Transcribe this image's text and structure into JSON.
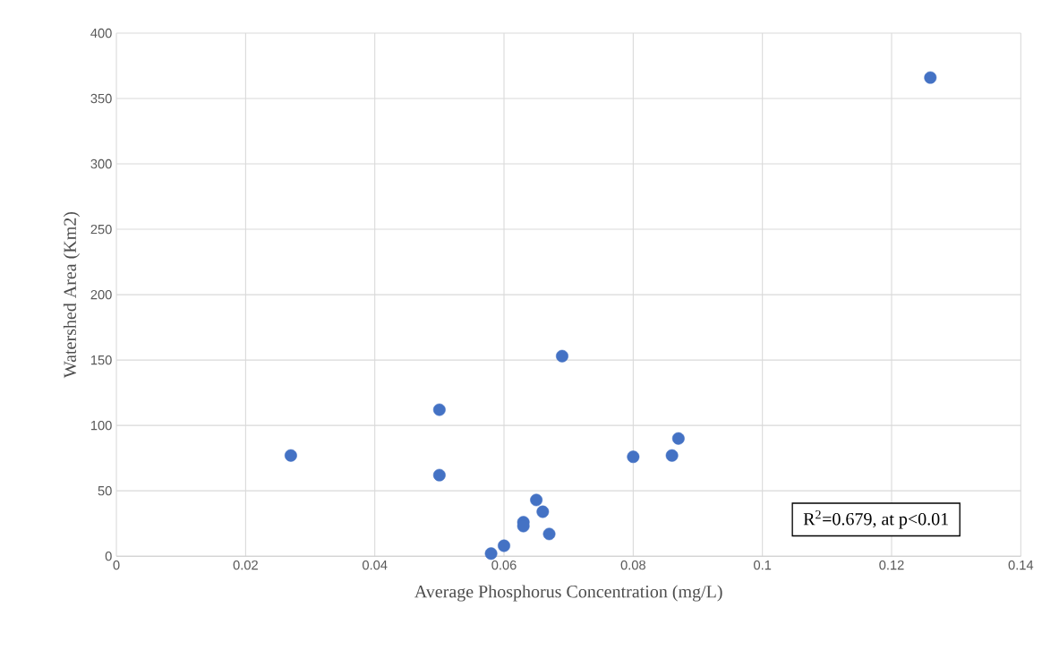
{
  "chart_data": {
    "type": "scatter",
    "xlabel": "Average Phosphorus Concentration (mg/L)",
    "ylabel": "Watershed Area (Km2)",
    "x": [
      0.027,
      0.05,
      0.05,
      0.058,
      0.06,
      0.063,
      0.063,
      0.065,
      0.066,
      0.067,
      0.069,
      0.08,
      0.086,
      0.087,
      0.126
    ],
    "values": [
      77,
      112,
      62,
      2,
      8,
      26,
      23,
      43,
      34,
      17,
      153,
      76,
      77,
      90,
      366
    ],
    "color": "#4472c4",
    "marker": "circle",
    "grid": true,
    "xlim": [
      0,
      0.14
    ],
    "xticks": [
      0,
      0.02,
      0.04,
      0.06,
      0.08,
      0.1,
      0.12,
      0.14
    ],
    "ylim": [
      0,
      400
    ],
    "yticks": [
      0,
      50,
      100,
      150,
      200,
      250,
      300,
      350,
      400
    ],
    "annotations": [
      "R$^{2}$=0.679, at p<0.01"
    ]
  }
}
